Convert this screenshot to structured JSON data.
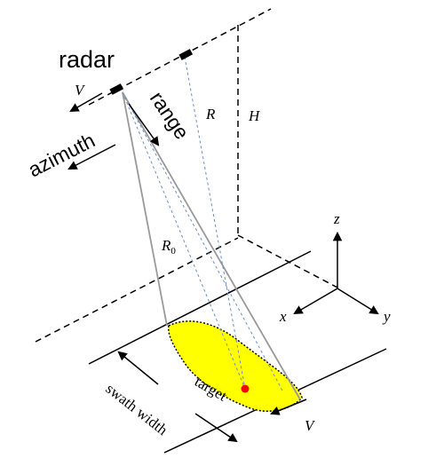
{
  "labels": {
    "radar": "radar",
    "range": "range",
    "azimuth": "azimuth",
    "velocity_top": "V",
    "slant_range": "R",
    "closest_range": "R",
    "closest_range_sub": "0",
    "height": "H",
    "axis_z": "z",
    "axis_x": "x",
    "axis_y": "y",
    "target": "target",
    "swath_width": "swath width",
    "velocity_bottom": "V"
  },
  "colors": {
    "line": "#000000",
    "beam": "#999999",
    "dash_blue": "#6a8ec8",
    "footprint_fill": "#ffff00",
    "target_point": "#ff0000"
  }
}
